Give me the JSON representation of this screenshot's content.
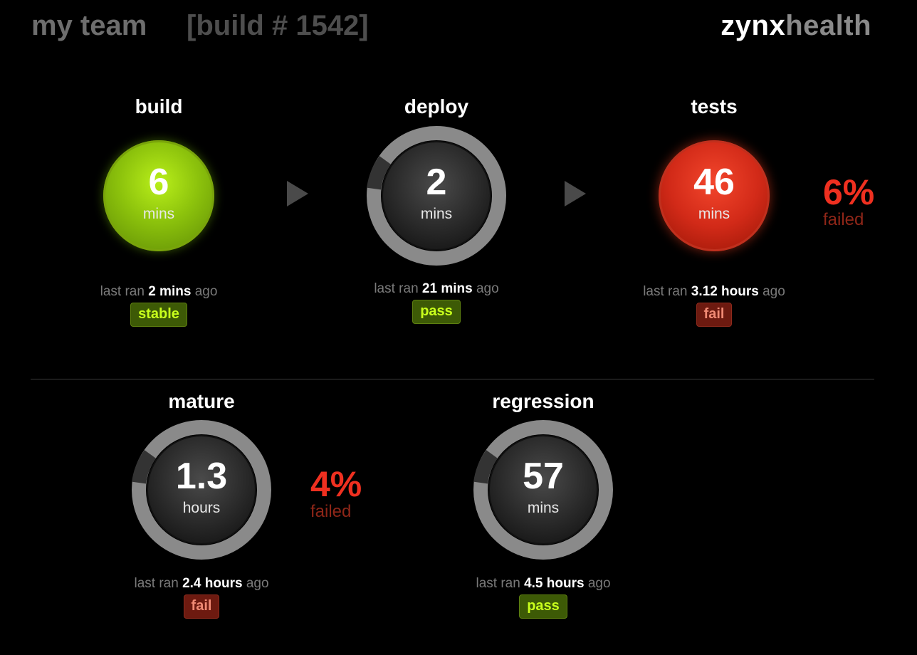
{
  "header": {
    "team": "my team",
    "build": "[build # 1542]",
    "logo_bold": "zynx",
    "logo_light": "health"
  },
  "colors": {
    "pass_green": "#8cc20c",
    "fail_red": "#d22a18",
    "ring_gray": "#8a8a8a",
    "background": "#000000"
  },
  "stages": {
    "build": {
      "title": "build",
      "value": "6",
      "unit": "mins",
      "last_ran_prefix": "last ran",
      "last_ran": "2 mins",
      "last_ran_suffix": "ago",
      "status": "stable",
      "style": "green-ball"
    },
    "deploy": {
      "title": "deploy",
      "value": "2",
      "unit": "mins",
      "last_ran_prefix": "last ran",
      "last_ran": "21 mins",
      "last_ran_suffix": "ago",
      "status": "pass",
      "style": "ring"
    },
    "tests": {
      "title": "tests",
      "value": "46",
      "unit": "mins",
      "last_ran_prefix": "last ran",
      "last_ran": "3.12 hours",
      "last_ran_suffix": "ago",
      "status": "fail",
      "style": "red-ball",
      "failed_pct": "6%",
      "failed_label": "failed"
    },
    "mature": {
      "title": "mature",
      "value": "1.3",
      "unit": "hours",
      "last_ran_prefix": "last ran",
      "last_ran": "2.4 hours",
      "last_ran_suffix": "ago",
      "status": "fail",
      "style": "ring",
      "failed_pct": "4%",
      "failed_label": "failed"
    },
    "regression": {
      "title": "regression",
      "value": "57",
      "unit": "mins",
      "last_ran_prefix": "last ran",
      "last_ran": "4.5 hours",
      "last_ran_suffix": "ago",
      "status": "pass",
      "style": "ring"
    }
  }
}
